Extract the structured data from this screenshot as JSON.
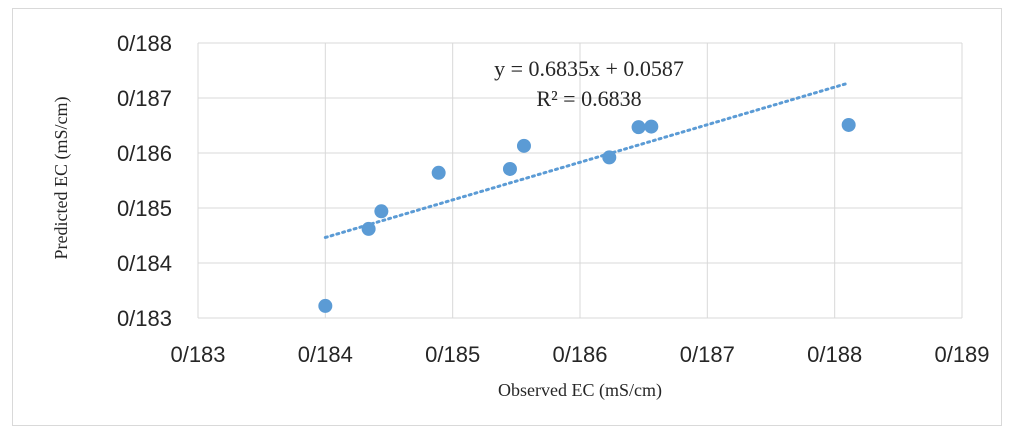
{
  "chart_data": {
    "type": "scatter",
    "title": "",
    "xlabel": "Observed EC (mS/cm)",
    "ylabel": "Predicted EC (mS/cm)",
    "xlim": [
      0.183,
      0.189
    ],
    "ylim": [
      0.183,
      0.188
    ],
    "x_ticks": [
      0.183,
      0.184,
      0.185,
      0.186,
      0.187,
      0.188,
      0.189
    ],
    "y_ticks": [
      0.183,
      0.184,
      0.185,
      0.186,
      0.187,
      0.188
    ],
    "x_tick_labels": [
      "0/183",
      "0/184",
      "0/185",
      "0/186",
      "0/187",
      "0/188",
      "0/189"
    ],
    "y_tick_labels": [
      "0/183",
      "0/184",
      "0/185",
      "0/186",
      "0/187",
      "0/188"
    ],
    "grid": true,
    "legend": "none",
    "series": [
      {
        "points": [
          {
            "x": 0.184,
            "y": 0.18322
          },
          {
            "x": 0.18434,
            "y": 0.18462
          },
          {
            "x": 0.18444,
            "y": 0.18494
          },
          {
            "x": 0.18489,
            "y": 0.18564
          },
          {
            "x": 0.18545,
            "y": 0.18571
          },
          {
            "x": 0.18556,
            "y": 0.18613
          },
          {
            "x": 0.18623,
            "y": 0.18592
          },
          {
            "x": 0.18646,
            "y": 0.18647
          },
          {
            "x": 0.18656,
            "y": 0.18648
          },
          {
            "x": 0.18811,
            "y": 0.18651
          }
        ],
        "color": "#5b9bd5"
      }
    ],
    "trendline": {
      "type": "linear",
      "slope": 0.6835,
      "intercept": 0.0587,
      "x_range": [
        0.184,
        0.1881
      ],
      "style": "dotted",
      "color": "#5b9bd5",
      "equation_label": "y = 0.6835x + 0.0587",
      "r2_label": "R² = 0.6838"
    }
  }
}
